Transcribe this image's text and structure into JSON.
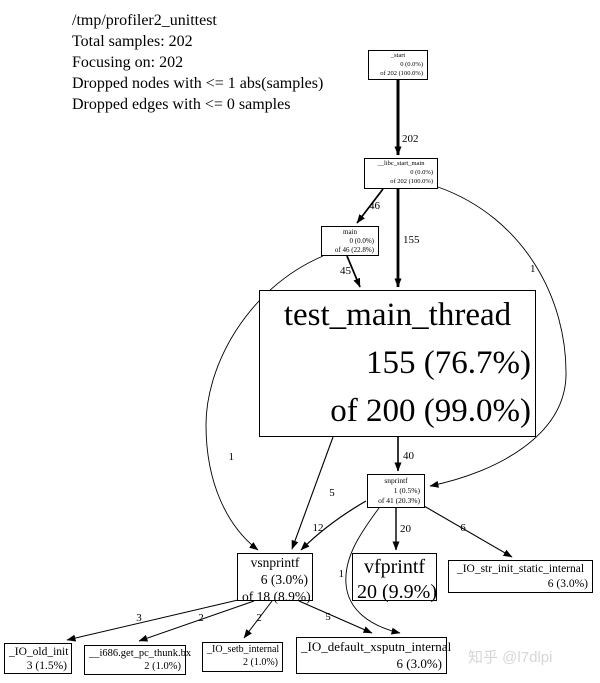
{
  "header": {
    "lines": [
      "/tmp/profiler2_unittest",
      "Total samples: 202",
      "Focusing on: 202",
      "Dropped nodes with <= 1 abs(samples)",
      "Dropped edges with <= 0 samples"
    ]
  },
  "graph": {
    "nodes": [
      {
        "id": "start",
        "name": "_start",
        "lines": [
          "0 (0.0%)",
          "of 202 (100.0%)"
        ]
      },
      {
        "id": "libc",
        "name": "__libc_start_main",
        "lines": [
          "0 (0.0%)",
          "of 202 (100.0%)"
        ]
      },
      {
        "id": "main",
        "name": "main",
        "lines": [
          "0 (0.0%)",
          "of 46 (22.8%)"
        ]
      },
      {
        "id": "tmt",
        "name": "test_main_thread",
        "lines": [
          "155 (76.7%)",
          "of 200 (99.0%)"
        ]
      },
      {
        "id": "snprintf",
        "name": "snprintf",
        "lines": [
          "1 (0.5%)",
          "of 41 (20.3%)"
        ]
      },
      {
        "id": "vsnprintf",
        "name": "vsnprintf",
        "lines": [
          "6 (3.0%)",
          "of 18 (8.9%)"
        ]
      },
      {
        "id": "vfprintf",
        "name": "vfprintf",
        "lines": [
          "20 (9.9%)"
        ]
      },
      {
        "id": "iostr",
        "name": "_IO_str_init_static_internal",
        "lines": [
          "6 (3.0%)"
        ]
      },
      {
        "id": "ioold",
        "name": "_IO_old_init",
        "lines": [
          "3 (1.5%)"
        ]
      },
      {
        "id": "i686",
        "name": "__i686.get_pc_thunk.bx",
        "lines": [
          "2 (1.0%)"
        ]
      },
      {
        "id": "iosetb",
        "name": "_IO_setb_internal",
        "lines": [
          "2 (1.0%)"
        ]
      },
      {
        "id": "ioxsputn",
        "name": "_IO_default_xsputn_internal",
        "lines": [
          "6 (3.0%)"
        ]
      }
    ],
    "edges": [
      {
        "from": "start",
        "to": "libc",
        "label": "202"
      },
      {
        "from": "libc",
        "to": "main",
        "label": "46"
      },
      {
        "from": "libc",
        "to": "tmt",
        "label": "155"
      },
      {
        "from": "libc",
        "to": "snprintf",
        "label": "1"
      },
      {
        "from": "main",
        "to": "tmt",
        "label": "45"
      },
      {
        "from": "main",
        "to": "vsnprintf",
        "label": "1"
      },
      {
        "from": "tmt",
        "to": "snprintf",
        "label": "40"
      },
      {
        "from": "tmt",
        "to": "vsnprintf",
        "label": "5"
      },
      {
        "from": "snprintf",
        "to": "vfprintf",
        "label": "20"
      },
      {
        "from": "snprintf",
        "to": "vsnprintf",
        "label": "12"
      },
      {
        "from": "snprintf",
        "to": "iostr",
        "label": "6"
      },
      {
        "from": "snprintf",
        "to": "ioxsputn",
        "label": "1"
      },
      {
        "from": "vsnprintf",
        "to": "ioold",
        "label": "3"
      },
      {
        "from": "vsnprintf",
        "to": "i686",
        "label": "2"
      },
      {
        "from": "vsnprintf",
        "to": "iosetb",
        "label": "2"
      },
      {
        "from": "vsnprintf",
        "to": "ioxsputn",
        "label": "5"
      }
    ]
  },
  "watermark": "知乎 @l7dlpi"
}
